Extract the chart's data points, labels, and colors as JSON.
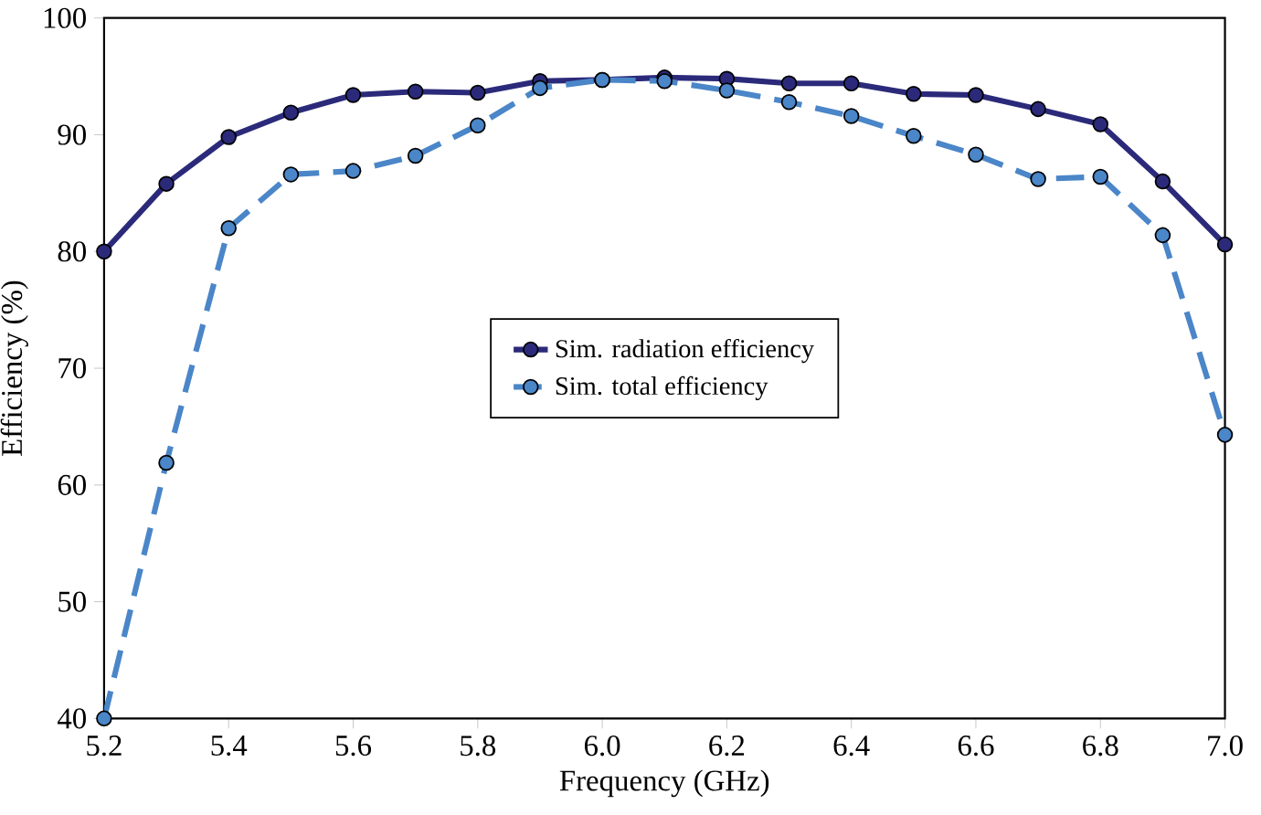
{
  "chart_data": {
    "type": "line",
    "xlabel": "Frequency  (GHz)",
    "ylabel": "Efficiency (%)",
    "x": [
      5.2,
      5.3,
      5.4,
      5.5,
      5.6,
      5.7,
      5.8,
      5.9,
      6.0,
      6.1,
      6.2,
      6.3,
      6.4,
      6.5,
      6.6,
      6.7,
      6.8,
      6.9,
      7.0
    ],
    "series": [
      {
        "name": "Sim. radiation efficiency",
        "color": "#2b2a7a",
        "line_style": "solid",
        "values": [
          80,
          85.8,
          89.8,
          91.9,
          93.4,
          93.7,
          93.6,
          94.6,
          94.7,
          94.9,
          94.8,
          94.4,
          94.4,
          93.5,
          93.4,
          92.2,
          90.9,
          86,
          80.6
        ]
      },
      {
        "name": "Sim. total efficiency",
        "color": "#4a86c8",
        "line_style": "dashed",
        "values": [
          40,
          61.9,
          82,
          86.6,
          86.9,
          88.2,
          90.8,
          94,
          94.7,
          94.6,
          93.8,
          92.8,
          91.6,
          89.9,
          88.3,
          86.2,
          86.4,
          81.4,
          64.3
        ]
      }
    ],
    "xlim": [
      5.2,
      7.0
    ],
    "ylim": [
      40,
      100
    ],
    "xticks": [
      5.2,
      5.4,
      5.6,
      5.8,
      {
        "value": 6.0,
        "label": "6.0"
      },
      6.2,
      6.4,
      6.6,
      6.8,
      {
        "value": 7.0,
        "label": "7.0"
      }
    ],
    "yticks": [
      40,
      50,
      60,
      70,
      80,
      90,
      100
    ],
    "marker": "circle",
    "grid": false,
    "legend": "center"
  }
}
